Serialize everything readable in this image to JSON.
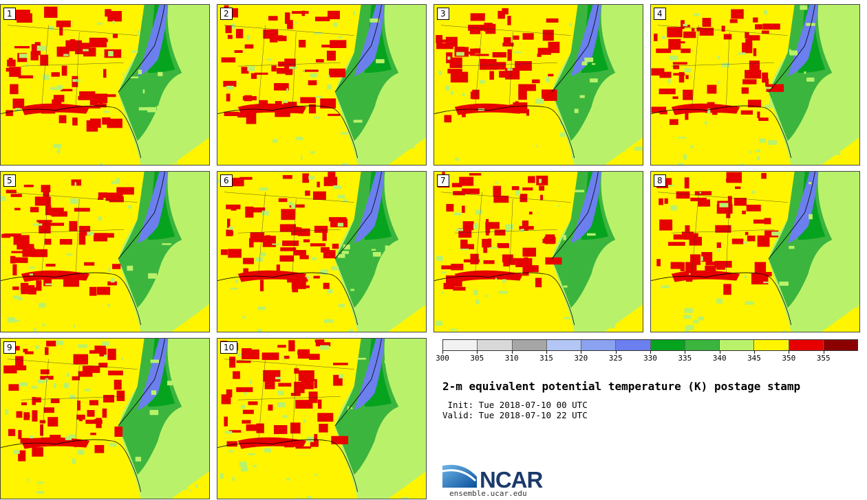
{
  "panels": [
    {
      "label": "1"
    },
    {
      "label": "2"
    },
    {
      "label": "3"
    },
    {
      "label": "4"
    },
    {
      "label": "5"
    },
    {
      "label": "6"
    },
    {
      "label": "7"
    },
    {
      "label": "8"
    },
    {
      "label": "9"
    },
    {
      "label": "10"
    }
  ],
  "colorbar": {
    "colors": [
      "#f2f2f2",
      "#d9d9d9",
      "#a6a6a6",
      "#b3c6f5",
      "#8aa2f0",
      "#6b7fee",
      "#06a31f",
      "#3cb53f",
      "#b9f26a",
      "#fff500",
      "#e60000",
      "#8b0000"
    ],
    "ticks": [
      "300",
      "305",
      "310",
      "315",
      "320",
      "325",
      "330",
      "335",
      "340",
      "345",
      "350",
      "355"
    ]
  },
  "title": "2-m equivalent potential temperature (K) postage stamp",
  "init": " Init: Tue 2018-07-10 00 UTC",
  "valid": "Valid: Tue 2018-07-10 22 UTC",
  "logo": {
    "name": "NCAR",
    "url": "ensemble.ucar.edu"
  }
}
